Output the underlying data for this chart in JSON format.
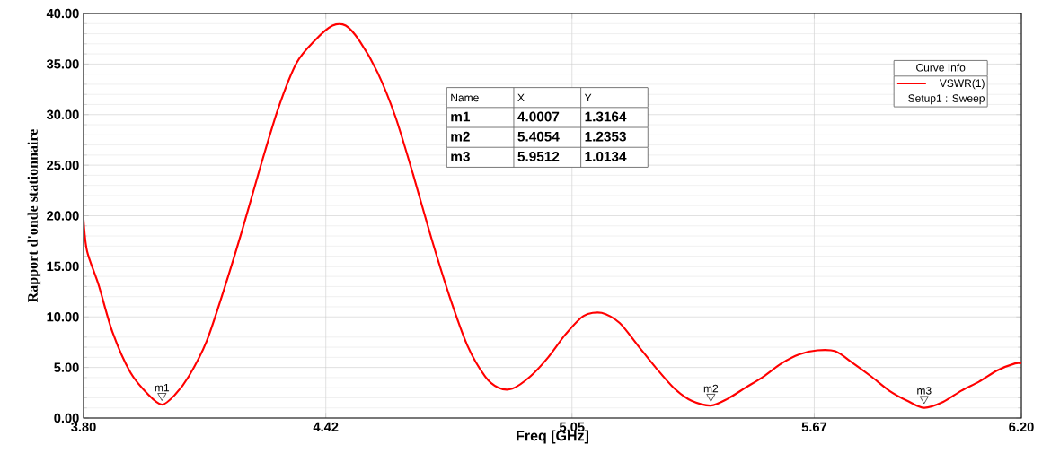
{
  "chart_data": {
    "type": "line",
    "xlabel": "Freq [GHz]",
    "ylabel": "Rapport d'onde stationnaire",
    "legend_title": "Curve Info",
    "legend": "top right",
    "grid": true,
    "xlim": [
      3.8,
      6.2
    ],
    "ylim": [
      0,
      40
    ],
    "xticks": [
      {
        "value": 3.8,
        "label": "3.80"
      },
      {
        "value": 4.42,
        "label": "4.42"
      },
      {
        "value": 5.05,
        "label": "5.05"
      },
      {
        "value": 5.67,
        "label": "5.67"
      },
      {
        "value": 6.2,
        "label": "6.20"
      }
    ],
    "yticks": [
      {
        "value": 0,
        "label": "0.00"
      },
      {
        "value": 5,
        "label": "5.00"
      },
      {
        "value": 10,
        "label": "10.00"
      },
      {
        "value": 15,
        "label": "15.00"
      },
      {
        "value": 20,
        "label": "20.00"
      },
      {
        "value": 25,
        "label": "25.00"
      },
      {
        "value": 30,
        "label": "30.00"
      },
      {
        "value": 35,
        "label": "35.00"
      },
      {
        "value": 40,
        "label": "40.00"
      }
    ],
    "x": [
      3.8,
      3.809,
      3.839,
      3.874,
      3.92,
      3.966,
      4.0007,
      4.034,
      4.069,
      4.115,
      4.161,
      4.207,
      4.253,
      4.299,
      4.345,
      4.391,
      4.437,
      4.471,
      4.506,
      4.552,
      4.598,
      4.644,
      4.69,
      4.736,
      4.782,
      4.828,
      4.862,
      4.897,
      4.943,
      4.989,
      5.034,
      5.08,
      5.126,
      5.172,
      5.218,
      5.264,
      5.31,
      5.356,
      5.4054,
      5.448,
      5.494,
      5.54,
      5.586,
      5.632,
      5.678,
      5.724,
      5.77,
      5.816,
      5.862,
      5.908,
      5.9512,
      6.0,
      6.046,
      6.092,
      6.138,
      6.184,
      6.2
    ],
    "series": [
      {
        "name": "VSWR(1)",
        "color": "#ff0000",
        "values": [
          19.6,
          16.5,
          13.1,
          8.5,
          4.5,
          2.3,
          1.3164,
          2.3,
          4.1,
          7.6,
          12.9,
          18.7,
          24.9,
          30.7,
          35.1,
          37.3,
          38.8,
          38.8,
          37.3,
          34.2,
          29.8,
          24.0,
          17.8,
          12.1,
          7.2,
          4.1,
          3.0,
          2.9,
          4.1,
          6.0,
          8.3,
          10.1,
          10.4,
          9.4,
          7.2,
          5.0,
          3.0,
          1.7,
          1.2353,
          1.9,
          3.0,
          4.1,
          5.4,
          6.3,
          6.7,
          6.6,
          5.4,
          4.1,
          2.7,
          1.7,
          1.0134,
          1.6,
          2.7,
          3.6,
          4.7,
          5.4,
          5.4
        ]
      }
    ],
    "annotations": [
      {
        "text": "m1",
        "x": 4.0007,
        "y": 1.3164
      },
      {
        "text": "m2",
        "x": 5.4054,
        "y": 1.2353
      },
      {
        "text": "m3",
        "x": 5.9512,
        "y": 1.0134
      },
      "Name",
      "X",
      "Y",
      "m1",
      "4.0007",
      "1.3164",
      "m2",
      "5.4054",
      "1.2353",
      "m3",
      "5.9512",
      "1.0134",
      "Setup1 : Sweep"
    ]
  }
}
